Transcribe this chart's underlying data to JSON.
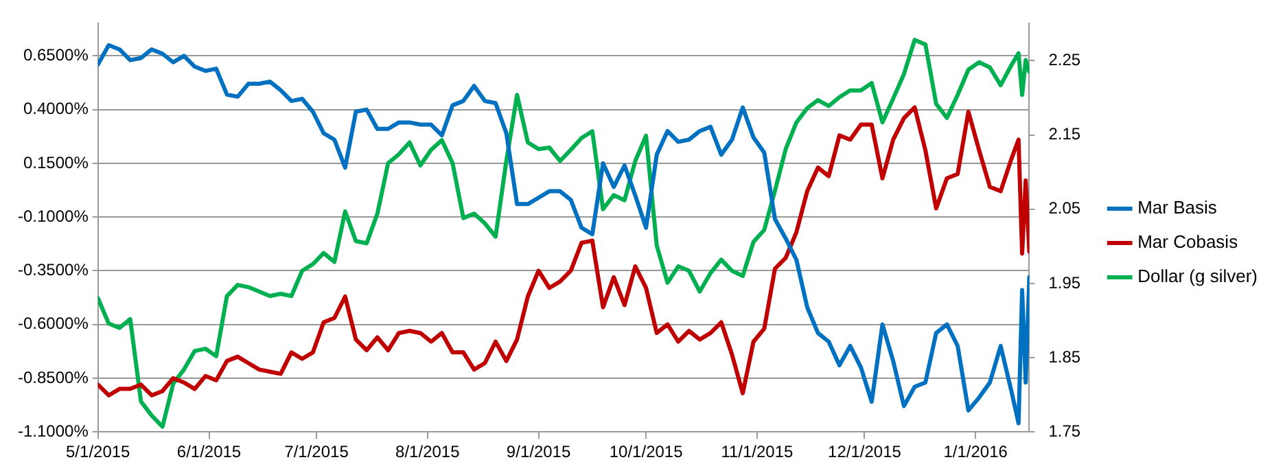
{
  "chart_data": {
    "type": "line",
    "x": [
      "2015-05-01",
      "2015-05-04",
      "2015-05-07",
      "2015-05-10",
      "2015-05-13",
      "2015-05-16",
      "2015-05-19",
      "2015-05-22",
      "2015-05-25",
      "2015-05-28",
      "2015-05-31",
      "2015-06-03",
      "2015-06-06",
      "2015-06-09",
      "2015-06-12",
      "2015-06-15",
      "2015-06-18",
      "2015-06-21",
      "2015-06-24",
      "2015-06-27",
      "2015-06-30",
      "2015-07-03",
      "2015-07-06",
      "2015-07-09",
      "2015-07-12",
      "2015-07-15",
      "2015-07-18",
      "2015-07-21",
      "2015-07-24",
      "2015-07-27",
      "2015-07-30",
      "2015-08-02",
      "2015-08-05",
      "2015-08-08",
      "2015-08-11",
      "2015-08-14",
      "2015-08-17",
      "2015-08-20",
      "2015-08-23",
      "2015-08-26",
      "2015-08-29",
      "2015-09-01",
      "2015-09-04",
      "2015-09-07",
      "2015-09-10",
      "2015-09-13",
      "2015-09-16",
      "2015-09-19",
      "2015-09-22",
      "2015-09-25",
      "2015-09-28",
      "2015-10-01",
      "2015-10-04",
      "2015-10-07",
      "2015-10-10",
      "2015-10-13",
      "2015-10-16",
      "2015-10-19",
      "2015-10-22",
      "2015-10-25",
      "2015-10-28",
      "2015-10-31",
      "2015-11-03",
      "2015-11-06",
      "2015-11-09",
      "2015-11-12",
      "2015-11-15",
      "2015-11-18",
      "2015-11-21",
      "2015-11-24",
      "2015-11-27",
      "2015-11-30",
      "2015-12-03",
      "2015-12-06",
      "2015-12-09",
      "2015-12-12",
      "2015-12-15",
      "2015-12-18",
      "2015-12-21",
      "2015-12-24",
      "2015-12-27",
      "2015-12-30",
      "2016-01-02",
      "2016-01-05",
      "2016-01-08",
      "2016-01-11",
      "2016-01-13",
      "2016-01-14",
      "2016-01-15",
      "2016-01-16"
    ],
    "series": [
      {
        "name": "Mar Basis",
        "color": "#0070c0",
        "values": [
          0.61,
          0.7,
          0.68,
          0.63,
          0.64,
          0.68,
          0.66,
          0.62,
          0.65,
          0.6,
          0.58,
          0.59,
          0.47,
          0.46,
          0.52,
          0.52,
          0.53,
          0.49,
          0.44,
          0.45,
          0.39,
          0.29,
          0.26,
          0.13,
          0.39,
          0.4,
          0.31,
          0.31,
          0.34,
          0.34,
          0.33,
          0.33,
          0.28,
          0.42,
          0.44,
          0.51,
          0.44,
          0.43,
          0.29,
          -0.04,
          -0.04,
          -0.01,
          0.02,
          0.02,
          -0.02,
          -0.15,
          -0.18,
          0.15,
          0.04,
          0.14,
          0.0,
          -0.15,
          0.19,
          0.3,
          0.25,
          0.26,
          0.3,
          0.32,
          0.19,
          0.26,
          0.41,
          0.27,
          0.2,
          -0.11,
          -0.2,
          -0.3,
          -0.52,
          -0.64,
          -0.68,
          -0.79,
          -0.7,
          -0.8,
          -0.96,
          -0.6,
          -0.77,
          -0.98,
          -0.89,
          -0.87,
          -0.64,
          -0.6,
          -0.7,
          -1.0,
          -0.94,
          -0.87,
          -0.7,
          -0.91,
          -1.06,
          -0.44,
          -0.87,
          -0.38
        ]
      },
      {
        "name": "Mar Cobasis",
        "color": "#c00000",
        "values": [
          -0.88,
          -0.93,
          -0.9,
          -0.9,
          -0.88,
          -0.93,
          -0.91,
          -0.85,
          -0.87,
          -0.9,
          -0.84,
          -0.86,
          -0.77,
          -0.75,
          -0.78,
          -0.81,
          -0.82,
          -0.83,
          -0.73,
          -0.76,
          -0.73,
          -0.59,
          -0.57,
          -0.47,
          -0.67,
          -0.72,
          -0.66,
          -0.72,
          -0.64,
          -0.63,
          -0.64,
          -0.68,
          -0.64,
          -0.73,
          -0.73,
          -0.81,
          -0.78,
          -0.68,
          -0.77,
          -0.67,
          -0.47,
          -0.35,
          -0.43,
          -0.4,
          -0.35,
          -0.22,
          -0.21,
          -0.52,
          -0.38,
          -0.51,
          -0.33,
          -0.43,
          -0.64,
          -0.6,
          -0.68,
          -0.63,
          -0.67,
          -0.64,
          -0.59,
          -0.74,
          -0.92,
          -0.68,
          -0.62,
          -0.34,
          -0.29,
          -0.17,
          0.02,
          0.13,
          0.09,
          0.28,
          0.26,
          0.33,
          0.33,
          0.08,
          0.26,
          0.36,
          0.41,
          0.21,
          -0.06,
          0.08,
          0.1,
          0.39,
          0.21,
          0.04,
          0.02,
          0.17,
          0.26,
          -0.27,
          0.07,
          -0.26
        ]
      },
      {
        "name": "Dollar (g silver)",
        "color": "#00b050",
        "axis": "y2",
        "values": [
          1.93,
          1.896,
          1.89,
          1.902,
          1.791,
          1.772,
          1.757,
          1.815,
          1.834,
          1.859,
          1.862,
          1.852,
          1.933,
          1.948,
          1.945,
          1.939,
          1.933,
          1.936,
          1.933,
          1.967,
          1.976,
          1.991,
          1.979,
          2.047,
          2.007,
          2.004,
          2.044,
          2.112,
          2.124,
          2.14,
          2.109,
          2.13,
          2.143,
          2.112,
          2.038,
          2.044,
          2.031,
          2.013,
          2.115,
          2.204,
          2.14,
          2.131,
          2.133,
          2.115,
          2.13,
          2.146,
          2.155,
          2.05,
          2.069,
          2.062,
          2.115,
          2.149,
          2.001,
          1.951,
          1.973,
          1.967,
          1.939,
          1.964,
          1.982,
          1.967,
          1.96,
          2.006,
          2.022,
          2.075,
          2.131,
          2.167,
          2.186,
          2.197,
          2.189,
          2.201,
          2.21,
          2.21,
          2.22,
          2.167,
          2.199,
          2.232,
          2.278,
          2.272,
          2.192,
          2.173,
          2.204,
          2.238,
          2.248,
          2.241,
          2.217,
          2.244,
          2.26,
          2.204,
          2.251,
          2.235
        ]
      }
    ],
    "xlim": [
      "2015-05-01",
      "2016-01-16"
    ],
    "xticks": [
      {
        "value": "2015-05-01",
        "label": "5/1/2015"
      },
      {
        "value": "2015-06-01",
        "label": "6/1/2015"
      },
      {
        "value": "2015-07-01",
        "label": "7/1/2015"
      },
      {
        "value": "2015-08-01",
        "label": "8/1/2015"
      },
      {
        "value": "2015-09-01",
        "label": "9/1/2015"
      },
      {
        "value": "2015-10-01",
        "label": "10/1/2015"
      },
      {
        "value": "2015-11-01",
        "label": "11/1/2015"
      },
      {
        "value": "2015-12-01",
        "label": "12/1/2015"
      },
      {
        "value": "2016-01-01",
        "label": "1/1/2016"
      }
    ],
    "ylim": [
      -1.1,
      0.8
    ],
    "yticks": [
      {
        "value": -1.1,
        "label": "-1.1000%"
      },
      {
        "value": -0.85,
        "label": "-0.8500%"
      },
      {
        "value": -0.6,
        "label": "-0.6000%"
      },
      {
        "value": -0.35,
        "label": "-0.3500%"
      },
      {
        "value": -0.1,
        "label": "-0.1000%"
      },
      {
        "value": 0.15,
        "label": "0.1500%"
      },
      {
        "value": 0.4,
        "label": "0.4000%"
      },
      {
        "value": 0.65,
        "label": "0.6500%"
      }
    ],
    "y2lim": [
      1.75,
      2.3
    ],
    "y2ticks": [
      1.75,
      1.85,
      1.95,
      2.05,
      2.15,
      2.25
    ],
    "grid": "y",
    "legend": "right",
    "marker": "none",
    "line_style": "solid"
  }
}
